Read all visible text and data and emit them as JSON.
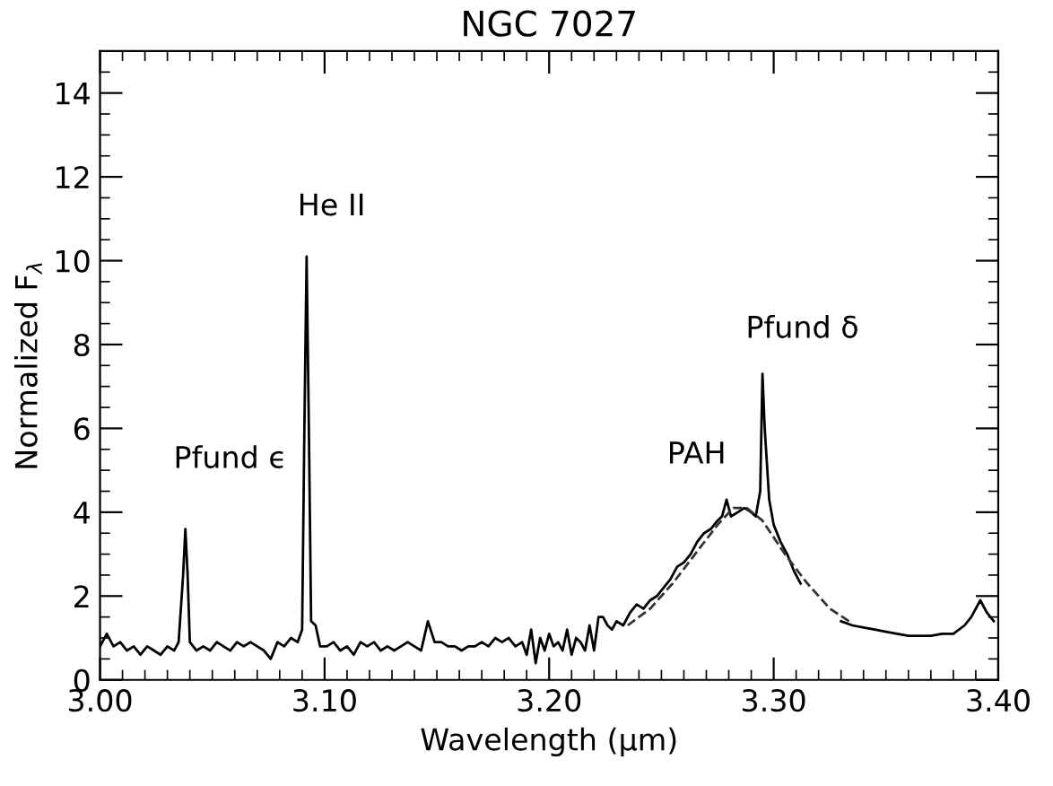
{
  "chart_data": {
    "type": "line",
    "title": "NGC 7027",
    "xlabel": "Wavelength (μm)",
    "ylabel": "Normalized F$_{λ}$",
    "xlim": [
      3.0,
      3.4
    ],
    "xticks": [
      {
        "value": 3.0,
        "label": "3.00"
      },
      {
        "value": 3.1,
        "label": "3.10"
      },
      {
        "value": 3.2,
        "label": "3.20"
      },
      {
        "value": 3.3,
        "label": "3.30"
      },
      {
        "value": 3.4,
        "label": "3.40"
      }
    ],
    "ylim": [
      0,
      15
    ],
    "yticks": [
      0,
      2,
      4,
      6,
      8,
      10,
      12,
      14
    ],
    "grid": false,
    "legend": false,
    "series": [
      {
        "color": "#000000",
        "line_style": "solid",
        "x": [
          3.0,
          3.003,
          3.006,
          3.009,
          3.012,
          3.015,
          3.018,
          3.021,
          3.024,
          3.027,
          3.03,
          3.033,
          3.035,
          3.037,
          3.038,
          3.039,
          3.04,
          3.043,
          3.046,
          3.049,
          3.052,
          3.055,
          3.058,
          3.061,
          3.064,
          3.067,
          3.07,
          3.073,
          3.076,
          3.079,
          3.082,
          3.085,
          3.088,
          3.09,
          3.091,
          3.092,
          3.093,
          3.094,
          3.096,
          3.098,
          3.101,
          3.104,
          3.107,
          3.11,
          3.113,
          3.116,
          3.119,
          3.122,
          3.125,
          3.128,
          3.131,
          3.134,
          3.137,
          3.14,
          3.143,
          3.146,
          3.149,
          3.152,
          3.155,
          3.158,
          3.161,
          3.164,
          3.167,
          3.17,
          3.173,
          3.176,
          3.179,
          3.182,
          3.185,
          3.188,
          3.19,
          3.192,
          3.194,
          3.196,
          3.198,
          3.2,
          3.202,
          3.204,
          3.206,
          3.208,
          3.21,
          3.212,
          3.214,
          3.216,
          3.218,
          3.22,
          3.222,
          3.224,
          3.226,
          3.228,
          3.23,
          3.233,
          3.236,
          3.239,
          3.242,
          3.245,
          3.248,
          3.251,
          3.254,
          3.257,
          3.26,
          3.263,
          3.266,
          3.269,
          3.272,
          3.275,
          3.277,
          3.279,
          3.281,
          3.284,
          3.287,
          3.29,
          3.292,
          3.294,
          3.295,
          3.296,
          3.298,
          3.3,
          3.303,
          3.306,
          3.309,
          3.312,
          3.32,
          3.33,
          3.335,
          3.34,
          3.345,
          3.35,
          3.355,
          3.36,
          3.365,
          3.37,
          3.375,
          3.38,
          3.385,
          3.388,
          3.392,
          3.395,
          3.398
        ],
        "values": [
          0.8,
          1.1,
          0.8,
          0.9,
          0.7,
          0.8,
          0.6,
          0.8,
          0.7,
          0.6,
          0.8,
          0.7,
          0.9,
          2.5,
          3.6,
          2.5,
          0.9,
          0.7,
          0.8,
          0.7,
          0.9,
          0.8,
          0.7,
          0.9,
          0.8,
          0.9,
          0.8,
          0.7,
          0.5,
          0.9,
          0.8,
          1.0,
          0.9,
          1.2,
          6,
          10.1,
          6,
          1.4,
          1.3,
          0.8,
          0.8,
          0.9,
          0.7,
          0.8,
          0.6,
          0.9,
          0.8,
          0.9,
          0.7,
          0.8,
          0.7,
          0.8,
          0.9,
          0.8,
          0.7,
          1.4,
          0.9,
          0.9,
          0.8,
          0.8,
          0.7,
          0.8,
          0.8,
          0.9,
          0.8,
          1.0,
          0.9,
          1.0,
          0.8,
          0.9,
          0.6,
          1.2,
          0.4,
          1.0,
          0.7,
          1.1,
          0.8,
          0.9,
          0.7,
          1.2,
          0.6,
          1.0,
          0.9,
          0.7,
          1.3,
          0.7,
          1.5,
          1.5,
          1.3,
          1.2,
          1.4,
          1.3,
          1.6,
          1.8,
          1.7,
          1.9,
          2.0,
          2.2,
          2.4,
          2.7,
          2.8,
          3.0,
          3.3,
          3.5,
          3.6,
          3.8,
          3.9,
          4.3,
          3.9,
          4.0,
          4.1,
          4.0,
          3.9,
          4.5,
          7.3,
          6,
          4.3,
          3.7,
          3.3,
          3.0,
          2.6,
          2.3,
          null,
          1.4,
          1.3,
          1.25,
          1.2,
          1.15,
          1.1,
          1.05,
          1.05,
          1.05,
          1.1,
          1.1,
          1.3,
          1.5,
          1.9,
          1.6,
          1.4
        ]
      },
      {
        "color": "#333333",
        "line_style": "dashed",
        "x": [
          3.235,
          3.245,
          3.255,
          3.265,
          3.275,
          3.282,
          3.288,
          3.295,
          3.305,
          3.315,
          3.325,
          3.335
        ],
        "values": [
          1.3,
          1.7,
          2.3,
          3.0,
          3.7,
          4.1,
          4.1,
          3.8,
          3.0,
          2.3,
          1.7,
          1.35
        ]
      }
    ],
    "annotations": [
      {
        "text": "Pfund ϵ",
        "x": 3.038,
        "y": 3.6
      },
      {
        "text": "He II",
        "x": 3.092,
        "y": 10.1
      },
      {
        "text": "PAH",
        "x": 3.279,
        "y": 4.3
      },
      {
        "text": "Pfund δ",
        "x": 3.295,
        "y": 7.3
      }
    ]
  }
}
